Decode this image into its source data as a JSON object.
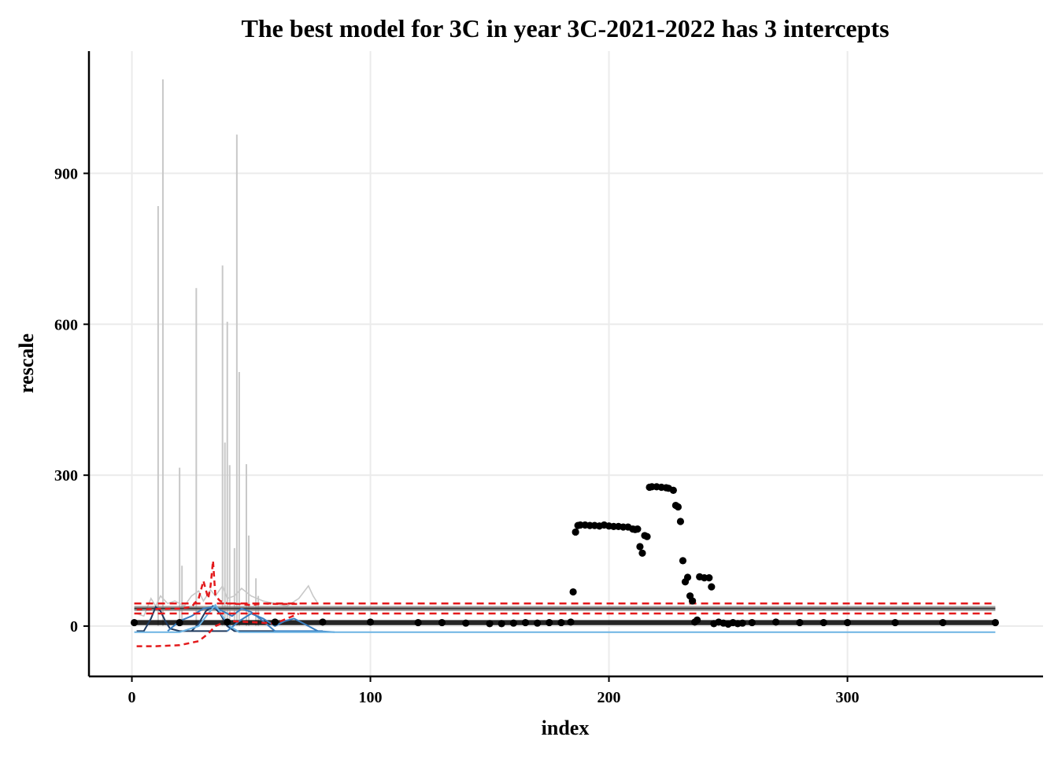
{
  "chart_data": {
    "type": "scatter",
    "title": "The best model for 3C in year 3C-2021-2022 has 3 intercepts",
    "xlabel": "index",
    "ylabel": "rescale",
    "xlim": [
      -18,
      382
    ],
    "ylim": [
      -100,
      1143
    ],
    "x_ticks": [
      0,
      100,
      200,
      300
    ],
    "y_ticks": [
      0,
      300,
      600,
      900
    ],
    "grid": true,
    "legend": "none",
    "colors": {
      "points": "#000000",
      "fit_band": "#808080",
      "fit_line": "#3a3a3a",
      "ci_dashed": "#e31a1c",
      "raw_traces": "#c8c8c8",
      "curves_dark": "#1f3a5f",
      "curves_mid": "#3a7fc0",
      "curves_light": "#6cb4e4",
      "grid": "#ebebeb"
    },
    "points": [
      [
        1,
        7
      ],
      [
        20,
        7
      ],
      [
        40,
        8
      ],
      [
        60,
        8
      ],
      [
        80,
        8
      ],
      [
        100,
        8
      ],
      [
        120,
        7
      ],
      [
        130,
        7
      ],
      [
        140,
        6
      ],
      [
        150,
        5
      ],
      [
        155,
        5
      ],
      [
        160,
        6
      ],
      [
        165,
        7
      ],
      [
        170,
        6
      ],
      [
        175,
        7
      ],
      [
        180,
        7
      ],
      [
        184,
        8
      ],
      [
        185,
        68
      ],
      [
        186,
        187
      ],
      [
        187,
        200
      ],
      [
        188,
        201
      ],
      [
        190,
        201
      ],
      [
        192,
        200
      ],
      [
        194,
        200
      ],
      [
        196,
        199
      ],
      [
        198,
        201
      ],
      [
        200,
        199
      ],
      [
        202,
        198
      ],
      [
        204,
        198
      ],
      [
        206,
        197
      ],
      [
        208,
        197
      ],
      [
        210,
        193
      ],
      [
        211,
        192
      ],
      [
        212,
        193
      ],
      [
        213,
        158
      ],
      [
        214,
        145
      ],
      [
        215,
        180
      ],
      [
        216,
        178
      ],
      [
        217,
        276
      ],
      [
        218,
        277
      ],
      [
        220,
        277
      ],
      [
        222,
        276
      ],
      [
        224,
        275
      ],
      [
        225,
        274
      ],
      [
        227,
        270
      ],
      [
        228,
        240
      ],
      [
        229,
        237
      ],
      [
        230,
        208
      ],
      [
        231,
        130
      ],
      [
        232,
        88
      ],
      [
        233,
        97
      ],
      [
        234,
        60
      ],
      [
        235,
        50
      ],
      [
        236,
        8
      ],
      [
        237,
        12
      ],
      [
        238,
        98
      ],
      [
        240,
        96
      ],
      [
        242,
        96
      ],
      [
        243,
        78
      ],
      [
        244,
        5
      ],
      [
        246,
        8
      ],
      [
        248,
        6
      ],
      [
        250,
        4
      ],
      [
        252,
        7
      ],
      [
        254,
        5
      ],
      [
        256,
        6
      ],
      [
        260,
        7
      ],
      [
        270,
        8
      ],
      [
        280,
        7
      ],
      [
        290,
        7
      ],
      [
        300,
        7
      ],
      [
        320,
        7
      ],
      [
        340,
        7
      ],
      [
        362,
        7
      ]
    ],
    "black_band": {
      "x": [
        1,
        362
      ],
      "values": [
        2,
        12
      ]
    },
    "fit_band": {
      "x": [
        1,
        362
      ],
      "values": [
        30,
        40
      ]
    },
    "fit_line": {
      "x": [
        1,
        362
      ],
      "value": 35
    },
    "ci_upper": {
      "x": [
        1,
        362
      ],
      "value": 45
    },
    "ci_lower": {
      "x": [
        1,
        362
      ],
      "value": 25
    },
    "ci_dashed_pre": {
      "upper": [
        [
          2,
          33
        ],
        [
          10,
          34
        ],
        [
          20,
          35
        ],
        [
          25,
          38
        ],
        [
          28,
          55
        ],
        [
          30,
          90
        ],
        [
          32,
          55
        ],
        [
          33,
          80
        ],
        [
          34,
          130
        ],
        [
          35,
          60
        ],
        [
          37,
          50
        ],
        [
          40,
          45
        ],
        [
          45,
          44
        ],
        [
          50,
          42
        ],
        [
          55,
          45
        ],
        [
          60,
          44
        ],
        [
          70,
          44
        ]
      ],
      "lower": [
        [
          2,
          -40
        ],
        [
          10,
          -40
        ],
        [
          20,
          -38
        ],
        [
          28,
          -30
        ],
        [
          32,
          -15
        ],
        [
          35,
          0
        ],
        [
          40,
          10
        ],
        [
          50,
          8
        ],
        [
          60,
          5
        ],
        [
          70,
          25
        ]
      ]
    },
    "spikes": [
      [
        11,
        835
      ],
      [
        13,
        1087
      ],
      [
        20,
        315
      ],
      [
        21,
        120
      ],
      [
        27,
        672
      ],
      [
        38,
        717
      ],
      [
        39,
        365
      ],
      [
        40,
        605
      ],
      [
        41,
        320
      ],
      [
        43,
        155
      ],
      [
        44,
        977
      ],
      [
        45,
        505
      ],
      [
        48,
        322
      ],
      [
        49,
        180
      ],
      [
        52,
        95
      ],
      [
        53,
        60
      ]
    ],
    "raw_wiggle": [
      [
        2,
        25
      ],
      [
        5,
        20
      ],
      [
        8,
        55
      ],
      [
        10,
        40
      ],
      [
        12,
        60
      ],
      [
        15,
        45
      ],
      [
        18,
        50
      ],
      [
        22,
        40
      ],
      [
        25,
        60
      ],
      [
        28,
        70
      ],
      [
        30,
        50
      ],
      [
        33,
        72
      ],
      [
        35,
        60
      ],
      [
        38,
        80
      ],
      [
        40,
        55
      ],
      [
        43,
        60
      ],
      [
        46,
        75
      ],
      [
        50,
        60
      ],
      [
        55,
        50
      ],
      [
        60,
        45
      ],
      [
        65,
        40
      ],
      [
        70,
        55
      ],
      [
        74,
        80
      ],
      [
        76,
        60
      ],
      [
        78,
        45
      ]
    ],
    "curves": [
      {
        "tone": "curves_dark",
        "points": [
          [
            2,
            -10
          ],
          [
            5,
            -10
          ],
          [
            8,
            15
          ],
          [
            10,
            38
          ],
          [
            12,
            30
          ],
          [
            14,
            10
          ],
          [
            16,
            -5
          ],
          [
            20,
            -10
          ],
          [
            30,
            -10
          ],
          [
            40,
            -10
          ]
        ]
      },
      {
        "tone": "curves_dark",
        "points": [
          [
            25,
            -10
          ],
          [
            28,
            5
          ],
          [
            31,
            30
          ],
          [
            34,
            40
          ],
          [
            37,
            25
          ],
          [
            40,
            0
          ],
          [
            43,
            -10
          ],
          [
            60,
            -10
          ]
        ]
      },
      {
        "tone": "curves_mid",
        "points": [
          [
            15,
            -10
          ],
          [
            20,
            10
          ],
          [
            25,
            20
          ],
          [
            30,
            35
          ],
          [
            34,
            38
          ],
          [
            38,
            30
          ],
          [
            42,
            20
          ],
          [
            46,
            35
          ],
          [
            50,
            28
          ],
          [
            55,
            10
          ],
          [
            60,
            -10
          ],
          [
            80,
            -10
          ]
        ]
      },
      {
        "tone": "curves_mid",
        "points": [
          [
            40,
            -10
          ],
          [
            45,
            10
          ],
          [
            50,
            25
          ],
          [
            55,
            15
          ],
          [
            60,
            0
          ],
          [
            64,
            10
          ],
          [
            68,
            15
          ],
          [
            72,
            5
          ],
          [
            78,
            -10
          ],
          [
            85,
            -12
          ]
        ]
      },
      {
        "tone": "curves_light",
        "points": [
          [
            1,
            -12
          ],
          [
            20,
            -12
          ],
          [
            28,
            0
          ],
          [
            32,
            25
          ],
          [
            35,
            42
          ],
          [
            38,
            20
          ],
          [
            41,
            0
          ],
          [
            45,
            -12
          ],
          [
            100,
            -12
          ],
          [
            200,
            -12
          ],
          [
            362,
            -12
          ]
        ]
      }
    ]
  }
}
